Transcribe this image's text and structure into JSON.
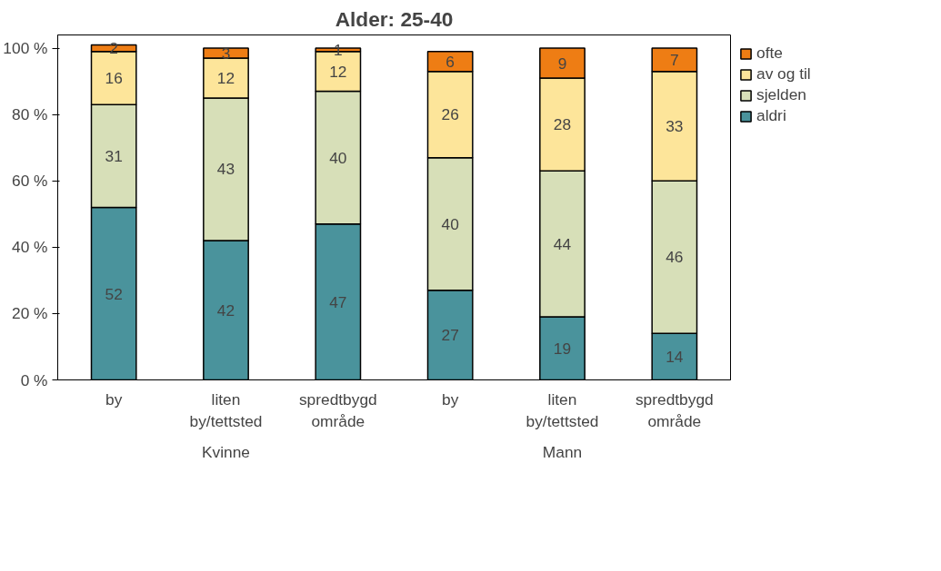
{
  "chart_data": {
    "type": "bar",
    "title": "Alder: 25-40",
    "stacked": true,
    "data_labels": true,
    "grid": false,
    "legend": "right",
    "categories": [
      "by",
      "liten\nby/tettsted",
      "spredtbygd\nområde",
      "by",
      "liten\nby/tettsted",
      "spredtbygd\nområde"
    ],
    "series": [
      {
        "name": "aldri",
        "color": "#4a939c",
        "values": [
          52,
          42,
          47,
          27,
          19,
          14
        ]
      },
      {
        "name": "sjelden",
        "color": "#d7dfb8",
        "values": [
          31,
          43,
          40,
          40,
          44,
          46
        ]
      },
      {
        "name": "av og til",
        "color": "#fde59a",
        "values": [
          16,
          12,
          12,
          26,
          28,
          33
        ]
      },
      {
        "name": "ofte",
        "color": "#ee7d14",
        "values": [
          2,
          3,
          1,
          6,
          9,
          7
        ]
      }
    ],
    "ylim": [
      0,
      104
    ],
    "yticks": [
      {
        "value": 0,
        "label": "0 %"
      },
      {
        "value": 20,
        "label": "20 %"
      },
      {
        "value": 40,
        "label": "40 %"
      },
      {
        "value": 60,
        "label": "60 %"
      },
      {
        "value": 80,
        "label": "80 %"
      },
      {
        "value": 100,
        "label": "100 %"
      }
    ],
    "annotations": [
      "Kvinne",
      "Mann"
    ]
  }
}
